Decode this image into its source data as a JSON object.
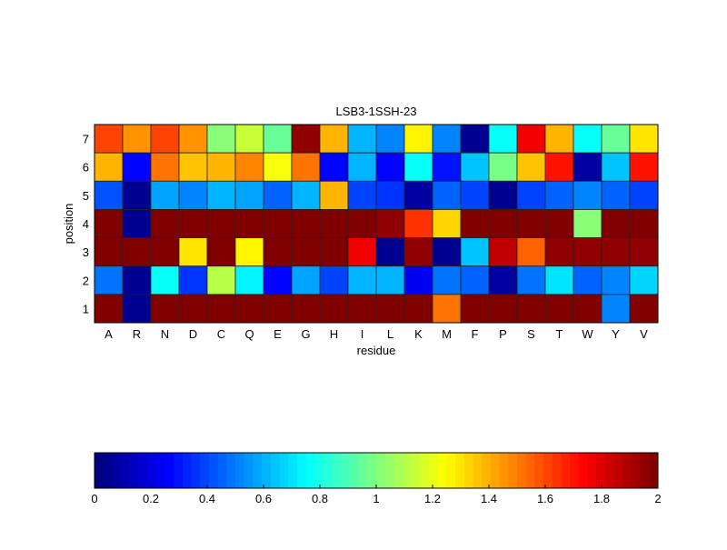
{
  "chart_data": {
    "type": "heatmap",
    "title": "LSB3-1SSH-23",
    "xlabel": "residue",
    "ylabel": "position",
    "x_categories": [
      "A",
      "R",
      "N",
      "D",
      "C",
      "Q",
      "E",
      "G",
      "H",
      "I",
      "L",
      "K",
      "M",
      "F",
      "P",
      "S",
      "T",
      "W",
      "Y",
      "V"
    ],
    "y_categories": [
      "1",
      "2",
      "3",
      "4",
      "5",
      "6",
      "7"
    ],
    "colormap": "jet",
    "clim": [
      0,
      2
    ],
    "colorbar": {
      "placement": "bottom",
      "ticks": [
        "0",
        "0.2",
        "0.4",
        "0.6",
        "0.8",
        "1",
        "1.2",
        "1.4",
        "1.6",
        "1.8",
        "2"
      ]
    },
    "rows": [
      {
        "position": "7",
        "values": [
          1.6,
          1.45,
          1.6,
          1.45,
          1.0,
          1.15,
          0.95,
          1.95,
          1.38,
          0.62,
          0.5,
          1.25,
          0.5,
          0.05,
          0.78,
          1.75,
          1.4,
          0.75,
          0.95,
          1.3
        ]
      },
      {
        "position": "6",
        "values": [
          1.4,
          0.27,
          1.5,
          1.35,
          1.38,
          1.48,
          1.22,
          1.5,
          0.25,
          0.62,
          0.25,
          0.78,
          0.3,
          0.65,
          0.98,
          1.35,
          1.7,
          0.07,
          0.65,
          1.7
        ]
      },
      {
        "position": "5",
        "values": [
          0.42,
          0.05,
          0.58,
          0.5,
          0.62,
          0.58,
          0.45,
          0.6,
          1.4,
          0.4,
          0.37,
          0.08,
          0.45,
          0.4,
          0.05,
          0.38,
          0.45,
          0.5,
          0.45,
          0.4
        ]
      },
      {
        "position": "4",
        "values": [
          2,
          0.05,
          2,
          2,
          2,
          2,
          2,
          2,
          2,
          2,
          1.95,
          1.65,
          1.32,
          2,
          2,
          2,
          2,
          1.0,
          2,
          2
        ]
      },
      {
        "position": "3",
        "values": [
          2,
          1.98,
          1.98,
          1.3,
          2,
          1.25,
          2,
          2,
          2,
          1.75,
          0.05,
          1.95,
          0.05,
          0.65,
          1.85,
          1.55,
          1.95,
          1.95,
          1.95,
          1.95
        ]
      },
      {
        "position": "2",
        "values": [
          0.47,
          0.05,
          0.75,
          0.35,
          1.1,
          0.72,
          0.25,
          0.58,
          0.38,
          0.62,
          0.6,
          0.23,
          0.47,
          0.45,
          0.07,
          0.47,
          0.7,
          0.45,
          0.5,
          0.68
        ]
      },
      {
        "position": "1",
        "values": [
          2,
          0.05,
          2,
          2,
          2,
          2,
          2,
          2,
          2,
          2,
          2,
          2,
          1.5,
          2,
          2,
          2,
          2,
          2,
          0.5,
          2
        ]
      }
    ]
  }
}
